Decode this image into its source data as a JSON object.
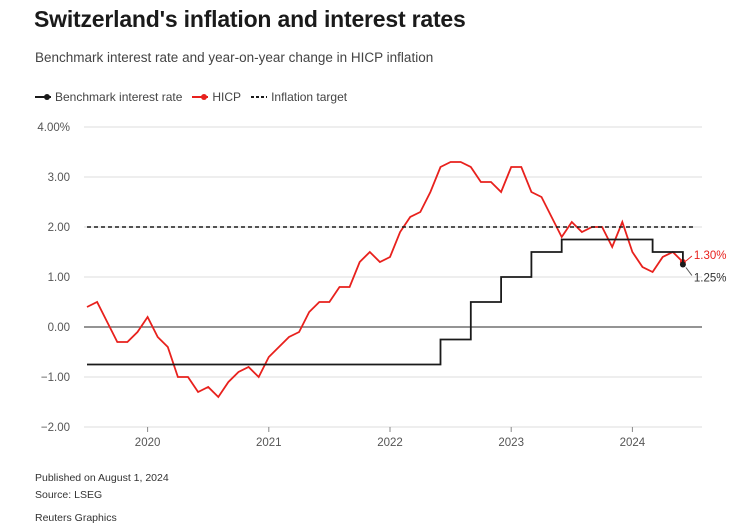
{
  "header": {
    "title": "Switzerland's inflation and interest rates",
    "subtitle": "Benchmark interest rate and year-on-year change in HICP inflation"
  },
  "legend": {
    "items": [
      {
        "label": "Benchmark interest rate",
        "color": "#1a1a1a",
        "style": "solid-dot"
      },
      {
        "label": "HICP",
        "color": "#e8211d",
        "style": "solid-dot"
      },
      {
        "label": "Inflation target",
        "color": "#1a1a1a",
        "style": "dashed"
      }
    ]
  },
  "footer": {
    "published": "Published on August 1, 2024",
    "source": "Source: LSEG",
    "credit": "Reuters Graphics"
  },
  "chart_data": {
    "type": "line",
    "title": "Switzerland's inflation and interest rates",
    "subtitle": "Benchmark interest rate and year-on-year change in HICP inflation",
    "xlabel": "",
    "ylabel": "",
    "ylim": [
      -2,
      4
    ],
    "xlim": [
      "2019-07",
      "2024-08"
    ],
    "y_ticks": [
      {
        "value": 4,
        "label": "4.00%"
      },
      {
        "value": 3,
        "label": "3.00"
      },
      {
        "value": 2,
        "label": "2.00"
      },
      {
        "value": 1,
        "label": "1.00"
      },
      {
        "value": 0,
        "label": "0.00"
      },
      {
        "value": -1,
        "label": "−1.00"
      },
      {
        "value": -2,
        "label": "−2.00"
      }
    ],
    "x_ticks": [
      {
        "value": "2020-01",
        "label": "2020"
      },
      {
        "value": "2021-01",
        "label": "2021"
      },
      {
        "value": "2022-01",
        "label": "2022"
      },
      {
        "value": "2023-01",
        "label": "2023"
      },
      {
        "value": "2024-01",
        "label": "2024"
      }
    ],
    "grid": true,
    "legend_position": "top-left",
    "series": [
      {
        "name": "HICP",
        "color": "#e8211d",
        "points": [
          [
            "2019-07",
            0.4
          ],
          [
            "2019-08",
            0.5
          ],
          [
            "2019-09",
            0.1
          ],
          [
            "2019-10",
            -0.3
          ],
          [
            "2019-11",
            -0.3
          ],
          [
            "2019-12",
            -0.1
          ],
          [
            "2020-01",
            0.2
          ],
          [
            "2020-02",
            -0.2
          ],
          [
            "2020-03",
            -0.4
          ],
          [
            "2020-04",
            -1.0
          ],
          [
            "2020-05",
            -1.0
          ],
          [
            "2020-06",
            -1.3
          ],
          [
            "2020-07",
            -1.2
          ],
          [
            "2020-08",
            -1.4
          ],
          [
            "2020-09",
            -1.1
          ],
          [
            "2020-10",
            -0.9
          ],
          [
            "2020-11",
            -0.8
          ],
          [
            "2020-12",
            -1.0
          ],
          [
            "2021-01",
            -0.6
          ],
          [
            "2021-02",
            -0.4
          ],
          [
            "2021-03",
            -0.2
          ],
          [
            "2021-04",
            -0.1
          ],
          [
            "2021-05",
            0.3
          ],
          [
            "2021-06",
            0.5
          ],
          [
            "2021-07",
            0.5
          ],
          [
            "2021-08",
            0.8
          ],
          [
            "2021-09",
            0.8
          ],
          [
            "2021-10",
            1.3
          ],
          [
            "2021-11",
            1.5
          ],
          [
            "2021-12",
            1.3
          ],
          [
            "2022-01",
            1.4
          ],
          [
            "2022-02",
            1.9
          ],
          [
            "2022-03",
            2.2
          ],
          [
            "2022-04",
            2.3
          ],
          [
            "2022-05",
            2.7
          ],
          [
            "2022-06",
            3.2
          ],
          [
            "2022-07",
            3.3
          ],
          [
            "2022-08",
            3.3
          ],
          [
            "2022-09",
            3.2
          ],
          [
            "2022-10",
            2.9
          ],
          [
            "2022-11",
            2.9
          ],
          [
            "2022-12",
            2.7
          ],
          [
            "2023-01",
            3.2
          ],
          [
            "2023-02",
            3.2
          ],
          [
            "2023-03",
            2.7
          ],
          [
            "2023-04",
            2.6
          ],
          [
            "2023-05",
            2.2
          ],
          [
            "2023-06",
            1.8
          ],
          [
            "2023-07",
            2.1
          ],
          [
            "2023-08",
            1.9
          ],
          [
            "2023-09",
            2.0
          ],
          [
            "2023-10",
            2.0
          ],
          [
            "2023-11",
            1.6
          ],
          [
            "2023-12",
            2.1
          ],
          [
            "2024-01",
            1.5
          ],
          [
            "2024-02",
            1.2
          ],
          [
            "2024-03",
            1.1
          ],
          [
            "2024-04",
            1.4
          ],
          [
            "2024-05",
            1.5
          ],
          [
            "2024-06",
            1.3
          ]
        ],
        "end_label": "1.30%"
      },
      {
        "name": "Benchmark interest rate",
        "color": "#1a1a1a",
        "step": true,
        "points": [
          [
            "2019-07",
            -0.75
          ],
          [
            "2022-06",
            -0.75
          ],
          [
            "2022-06",
            -0.25
          ],
          [
            "2022-09",
            -0.25
          ],
          [
            "2022-09",
            0.5
          ],
          [
            "2022-12",
            0.5
          ],
          [
            "2022-12",
            1.0
          ],
          [
            "2023-03",
            1.0
          ],
          [
            "2023-03",
            1.5
          ],
          [
            "2023-06",
            1.5
          ],
          [
            "2023-06",
            1.75
          ],
          [
            "2024-03",
            1.75
          ],
          [
            "2024-03",
            1.5
          ],
          [
            "2024-06",
            1.5
          ],
          [
            "2024-06",
            1.25
          ]
        ],
        "end_label": "1.25%"
      },
      {
        "name": "Inflation target",
        "color": "#1a1a1a",
        "dashed": true,
        "points": [
          [
            "2019-07",
            2.0
          ],
          [
            "2024-07",
            2.0
          ]
        ]
      }
    ]
  }
}
